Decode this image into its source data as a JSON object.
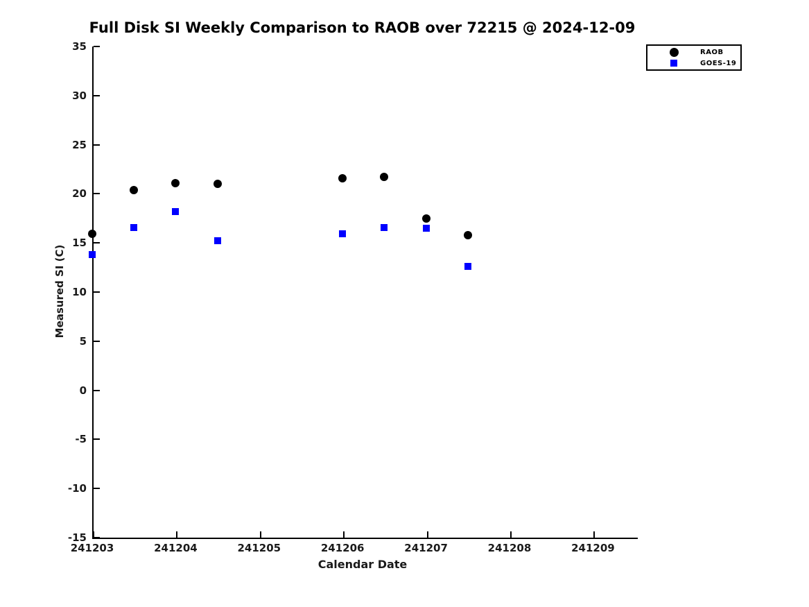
{
  "chart_data": {
    "type": "scatter",
    "title": "Full Disk SI Weekly Comparison to RAOB over 72215 @ 2024-12-09",
    "xlabel": "Calendar Date",
    "ylabel": "Measured SI (C)",
    "xlim": [
      241203,
      241209.52
    ],
    "ylim": [
      -15,
      35
    ],
    "x_ticks": [
      241203,
      241204,
      241205,
      241206,
      241207,
      241208,
      241209
    ],
    "y_ticks": [
      35,
      30,
      25,
      20,
      15,
      10,
      5,
      0,
      -5,
      -10,
      -15
    ],
    "grid": false,
    "legend_position": "top-right",
    "x": [
      241203,
      241203.5,
      241204,
      241204.5,
      241206,
      241206.5,
      241207,
      241207.5
    ],
    "series": [
      {
        "name": "RAOB",
        "marker": "circle",
        "color": "#000000",
        "values": [
          15.9,
          20.4,
          21.1,
          21.0,
          21.6,
          21.7,
          17.5,
          15.8
        ]
      },
      {
        "name": "GOES-19",
        "marker": "square",
        "color": "#0000ff",
        "values": [
          13.8,
          16.6,
          18.2,
          15.2,
          15.9,
          16.6,
          16.5,
          12.6
        ]
      }
    ]
  }
}
